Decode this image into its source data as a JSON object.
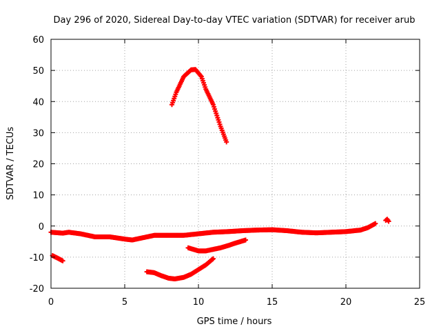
{
  "chart_data": {
    "type": "scatter",
    "title": "Day 296 of 2020, Sidereal Day-to-day VTEC variation (SDTVAR) for receiver arub",
    "xlabel": "GPS time / hours",
    "ylabel": "SDTVAR / TECUs",
    "xlim": [
      0,
      25
    ],
    "ylim": [
      -20,
      60
    ],
    "x_ticks": [
      0,
      5,
      10,
      15,
      20,
      25
    ],
    "y_ticks": [
      -20,
      -10,
      0,
      10,
      20,
      30,
      40,
      50,
      60
    ],
    "x_tick_labels": [
      "0",
      "5",
      "10",
      "15",
      "20",
      "25"
    ],
    "y_tick_labels": [
      "-20",
      "-10",
      "0",
      "10",
      "20",
      "30",
      "40",
      "50",
      "60"
    ],
    "grid": true,
    "legend": "none",
    "marker_color": "#ff0000",
    "series": [
      {
        "name": "main-band",
        "x": [
          0,
          0.8,
          1.2,
          2,
          2.5,
          3,
          4,
          5,
          5.5,
          6,
          7,
          8,
          9,
          10,
          11,
          12,
          13,
          14,
          15,
          16,
          17,
          18,
          19,
          20,
          21,
          21.5,
          22
        ],
        "y": [
          -2,
          -2.3,
          -2,
          -2.5,
          -3,
          -3.5,
          -3.5,
          -4.2,
          -4.5,
          -4,
          -3,
          -3,
          -3,
          -2.5,
          -2,
          -1.8,
          -1.5,
          -1.3,
          -1.2,
          -1.5,
          -2,
          -2.2,
          -2,
          -1.8,
          -1.3,
          -0.5,
          0.8
        ]
      },
      {
        "name": "isolated-late",
        "x": [
          22.7,
          22.8,
          22.9
        ],
        "y": [
          1.8,
          2.2,
          1.5
        ]
      },
      {
        "name": "high-arc",
        "x": [
          8.2,
          8.5,
          9,
          9.5,
          9.8,
          10.2,
          10.5,
          11,
          11.5,
          11.9
        ],
        "y": [
          39,
          43,
          48,
          50.2,
          50.3,
          48,
          44,
          39,
          32,
          27
        ]
      },
      {
        "name": "early-low",
        "x": [
          0.1,
          0.4,
          0.8
        ],
        "y": [
          -9.5,
          -10.2,
          -11.2
        ]
      },
      {
        "name": "mid-low-rising",
        "x": [
          9.3,
          10,
          10.5,
          11,
          11.5,
          12,
          12.5,
          13.2
        ],
        "y": [
          -7,
          -8,
          -8,
          -7.5,
          -7,
          -6.3,
          -5.5,
          -4.5
        ]
      },
      {
        "name": "low-arc",
        "x": [
          6.5,
          7,
          7.5,
          8,
          8.4,
          9,
          9.5,
          10,
          10.5,
          11
        ],
        "y": [
          -14.7,
          -15,
          -16,
          -16.8,
          -17,
          -16.5,
          -15.5,
          -14,
          -12.5,
          -10.5
        ]
      }
    ]
  }
}
